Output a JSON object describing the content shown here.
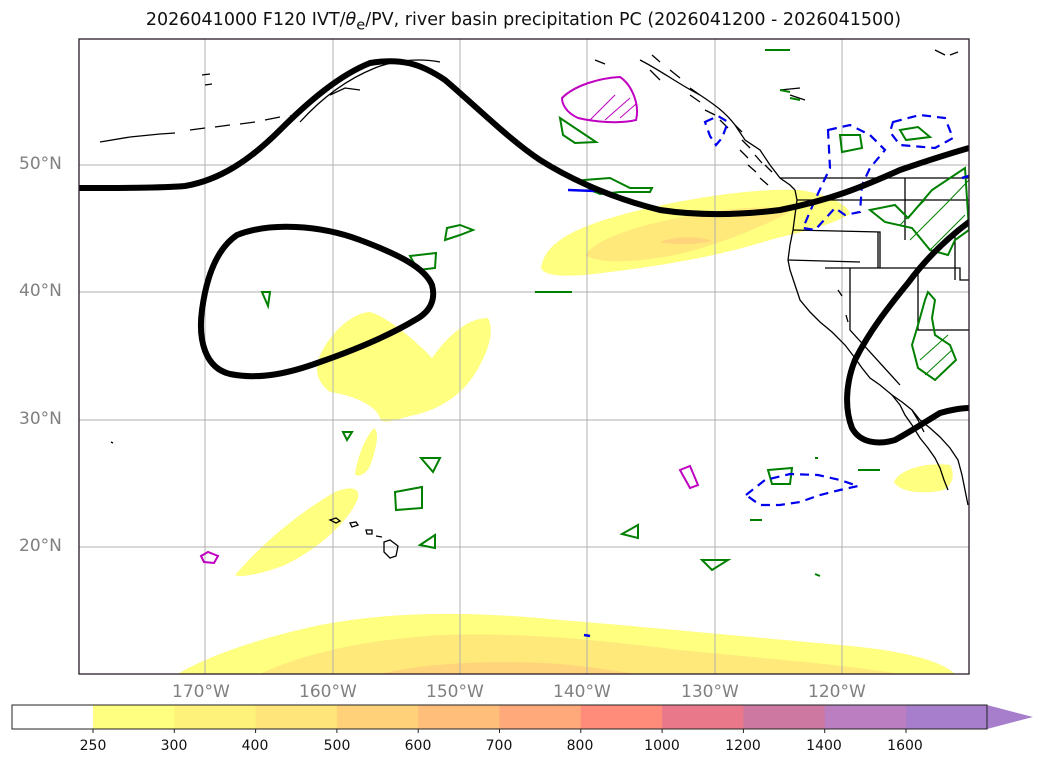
{
  "title": {
    "prefix": "2026041000 F120 IVT/",
    "theta_symbol": "θ",
    "theta_sub": "e",
    "suffix": "/PV, river basin precipitation PC (2026041200 - 2026041500)"
  },
  "axes": {
    "lat_labels": [
      "50°N",
      "40°N",
      "30°N",
      "20°N"
    ],
    "lon_labels": [
      "170°W",
      "160°W",
      "150°W",
      "140°W",
      "130°W",
      "120°W"
    ]
  },
  "colorbar": {
    "ticks": [
      "250",
      "300",
      "400",
      "500",
      "600",
      "700",
      "800",
      "1000",
      "1200",
      "1400",
      "1600"
    ],
    "colors": [
      "#ffffff",
      "#ffff80",
      "#fff27a",
      "#ffe57a",
      "#ffd27a",
      "#ffbe7a",
      "#ffa87a",
      "#ff8c7a",
      "#e8788a",
      "#cc78a0",
      "#bb7ec0",
      "#a67ecc"
    ]
  },
  "styles": {
    "ivt_light": "#ffff80",
    "ivt_mid": "#ffe97a",
    "ivt_high": "#ffd47a",
    "pv_contour": "#000000",
    "theta_e_green": "#008000",
    "theta_e_magenta": "#c000c0",
    "precip_blue": "#0000ee",
    "grid": "#b0b0b0",
    "coast": "#000000"
  }
}
